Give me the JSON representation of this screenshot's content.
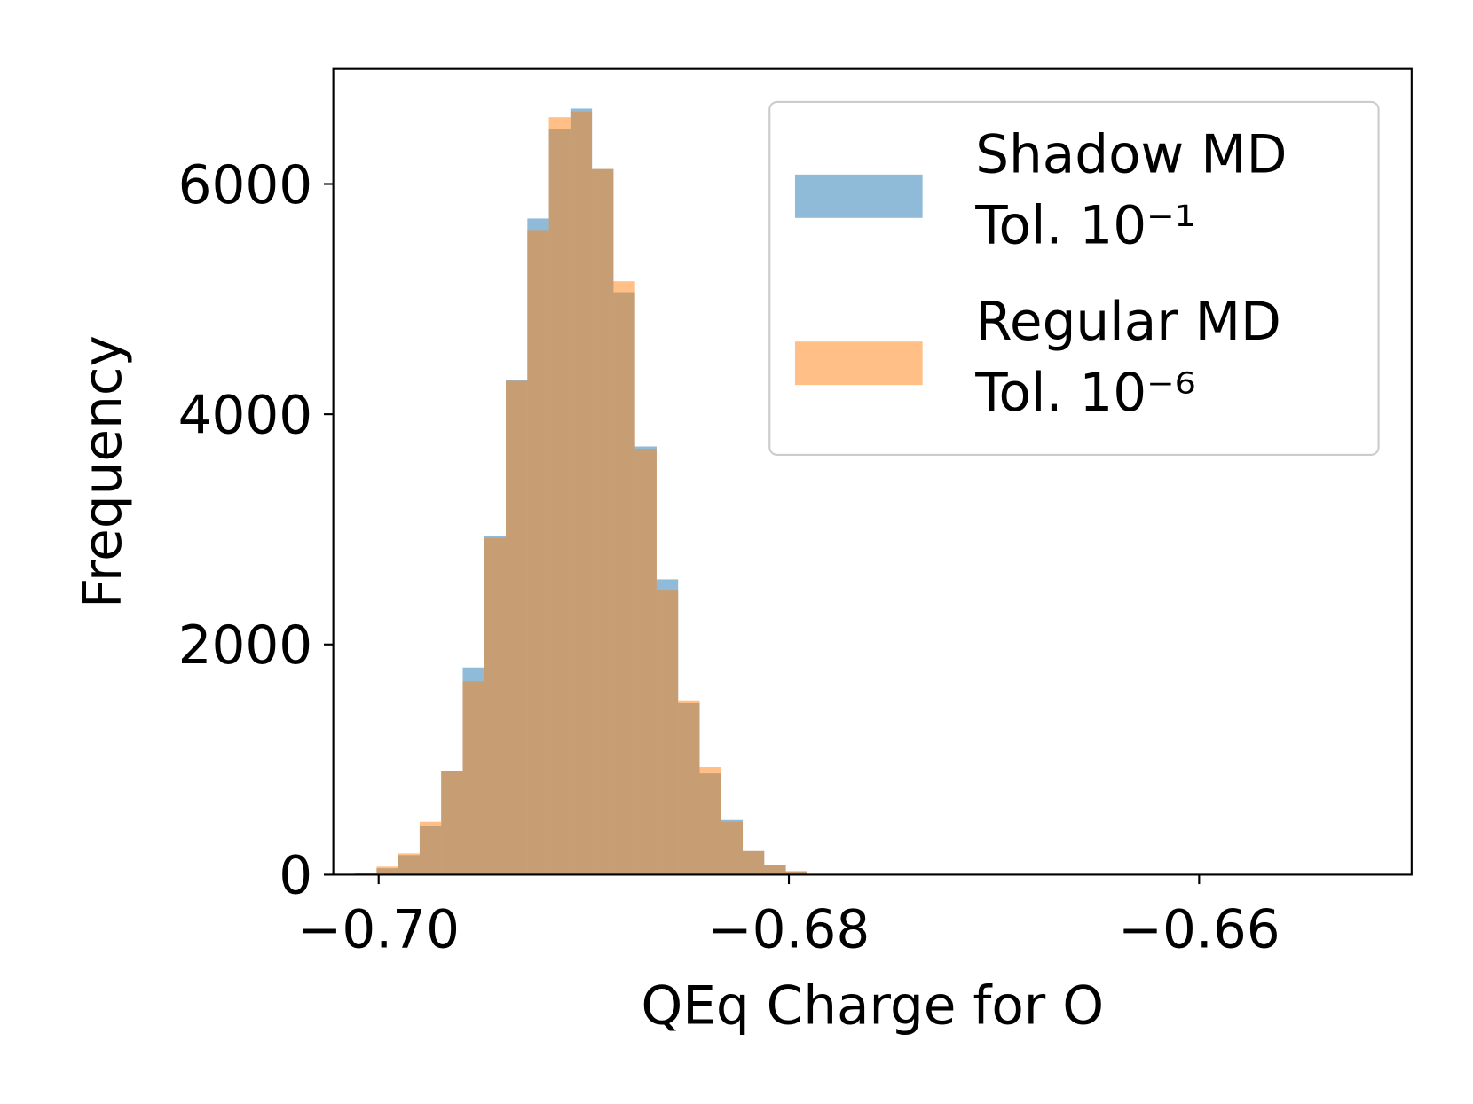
{
  "chart_data": {
    "type": "histogram",
    "xlabel": "QEq Charge for O",
    "ylabel": "Frequency",
    "bins": [
      -0.70115,
      -0.7001,
      -0.69905,
      -0.698,
      -0.69695,
      -0.6959,
      -0.69485,
      -0.6938,
      -0.69275,
      -0.6917,
      -0.69065,
      -0.6896,
      -0.68855,
      -0.6875,
      -0.68645,
      -0.6854,
      -0.68435,
      -0.6833,
      -0.68225,
      -0.6812,
      -0.68015,
      -0.6791
    ],
    "series": [
      {
        "name": "Shadow MD\nTol. 10⁻¹",
        "color": "#1f77b4",
        "alpha": 0.5,
        "values": [
          15,
          55,
          170,
          420,
          900,
          1800,
          2940,
          4300,
          5700,
          6475,
          6655,
          6130,
          5060,
          3720,
          2565,
          1490,
          880,
          475,
          205,
          80,
          30
        ]
      },
      {
        "name": "Regular MD\nTol. 10⁻⁶",
        "color": "#ff7f0e",
        "alpha": 0.5,
        "values": [
          15,
          70,
          185,
          460,
          900,
          1680,
          2925,
          4290,
          5600,
          6580,
          6630,
          6130,
          5155,
          3700,
          2475,
          1515,
          935,
          460,
          205,
          80,
          30
        ]
      }
    ],
    "xlim": [
      -0.70221,
      -0.64964
    ],
    "ylim": [
      0,
      7000
    ],
    "xticks": [
      {
        "value": -0.7,
        "label": "−0.70"
      },
      {
        "value": -0.68,
        "label": "−0.68"
      },
      {
        "value": -0.66,
        "label": "−0.66"
      }
    ],
    "yticks": [
      0,
      2000,
      4000,
      6000
    ],
    "legend": "upper right",
    "grid": false
  }
}
